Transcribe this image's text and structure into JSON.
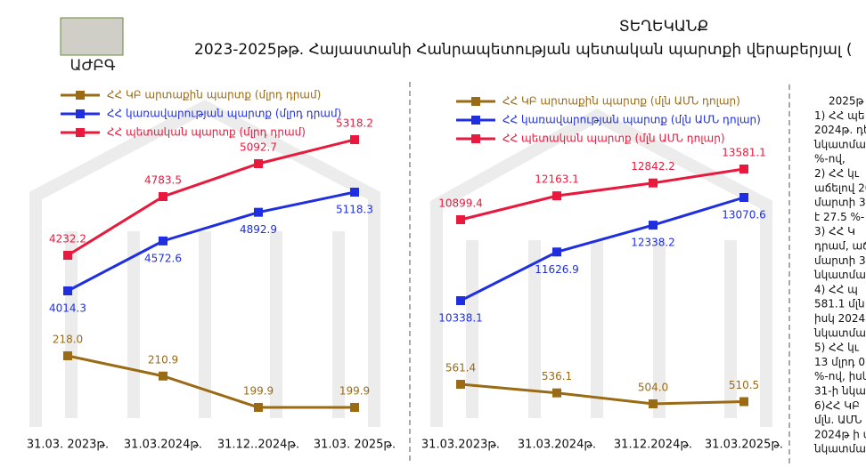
{
  "header": {
    "title": "ՏԵՂԵԿԱՆՔ",
    "subtitle": "2023-2025թթ. Հայաստանի Հանրապետության պետական պարտքի վերաբերյալ (",
    "logo_text": "ԱԺԲԳ"
  },
  "chart_data": [
    {
      "type": "line",
      "categories": [
        "31.03. 2023թ.",
        "31.03.2024թ.",
        "31.12..2024թ.",
        "31.03. 2025թ."
      ],
      "series": [
        {
          "name": "ՀՀ ԿԲ արտաքին պարտք (մլրդ դրամ)",
          "color": "#9a6a14",
          "values": [
            218.0,
            210.9,
            199.9,
            199.9
          ],
          "value_labels": [
            "218.0",
            "210.9",
            "199.9",
            "199.9"
          ]
        },
        {
          "name": "ՀՀ կառավարության պարտք (մլրդ դրամ)",
          "color": "#1f2fe0",
          "values": [
            4014.3,
            4572.6,
            4892.9,
            5118.3
          ],
          "value_labels": [
            "4014.3",
            "4572.6",
            "4892.9",
            "5118.3"
          ]
        },
        {
          "name": "ՀՀ պետական պարտք (մլրդ դրամ)",
          "color": "#e8193c",
          "values": [
            4232.2,
            4783.5,
            5092.7,
            5318.2
          ],
          "value_labels": [
            "4232.2",
            "4783.5",
            "5092.7",
            "5318.2"
          ]
        }
      ]
    },
    {
      "type": "line",
      "categories": [
        "31.03.2023թ.",
        "31.03.2024թ.",
        "31.12.2024թ.",
        "31.03.2025թ."
      ],
      "series": [
        {
          "name": "ՀՀ ԿԲ արտաքին պարտք (մլն ԱՄՆ դոլար)",
          "color": "#9a6a14",
          "values": [
            561.4,
            536.1,
            504.0,
            510.5
          ],
          "value_labels": [
            "561.4",
            "536.1",
            "504.0",
            "510.5"
          ]
        },
        {
          "name": "ՀՀ կառավարության պարտք (մլն ԱՄՆ դոլար)",
          "color": "#1f2fe0",
          "values": [
            10338.1,
            11626.9,
            12338.2,
            13070.6
          ],
          "value_labels": [
            "10338.1",
            "11626.9",
            "12338.2",
            "13070.6"
          ]
        },
        {
          "name": "ՀՀ պետական պարտք (մլն ԱՄՆ դոլար)",
          "color": "#e8193c",
          "values": [
            10899.4,
            12163.1,
            12842.2,
            13581.1
          ],
          "value_labels": [
            "10899.4",
            "12163.1",
            "12842.2",
            "13581.1"
          ]
        }
      ]
    }
  ],
  "side_text": [
    "2025թ",
    "1) ՀՀ պե",
    "2024թ. դե",
    "նկատմամբ",
    "%-ով,",
    "2) ՀՀ կւ",
    "աճելով 20",
    "մարտի 31",
    "է 27.5 %-",
    "3) ՀՀ Կ",
    "դրամ, աճ",
    "մարտի 31",
    "նկատմամբ",
    "4) ՀՀ պ",
    "581.1 մլն",
    "իսկ 2024",
    "նկատմամբ",
    "5) ՀՀ կւ",
    "13 մլրդ 07",
    "%-ով, իսկ",
    "31-ի նկա",
    "6)ՀՀ ԿԲ",
    "մլն. ԱՄՆ",
    "2024թ ի ս",
    "նկատմամբ"
  ]
}
